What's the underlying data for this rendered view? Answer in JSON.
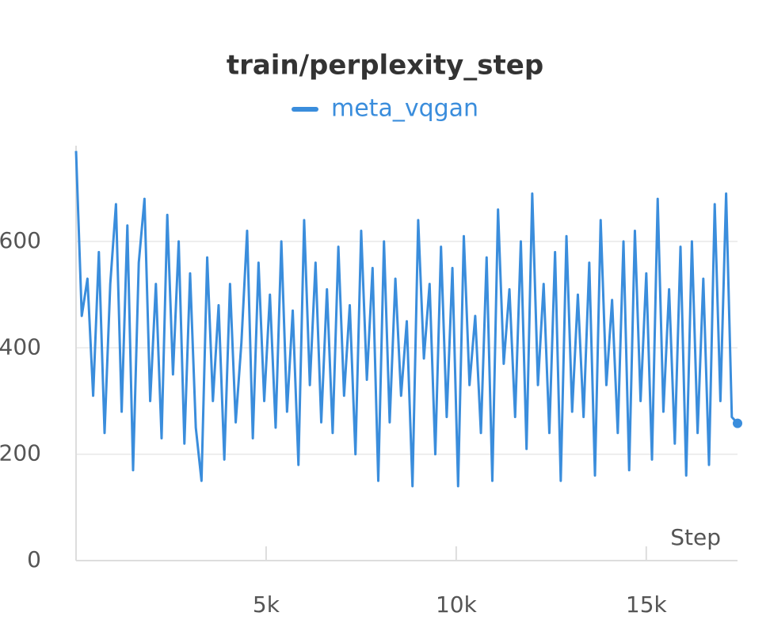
{
  "chart_data": {
    "type": "line",
    "title": "train/perplexity_step",
    "xlabel": "Step",
    "series": [
      {
        "name": "meta_vqgan",
        "color": "#3a8ddc",
        "values": [
          770,
          460,
          530,
          310,
          580,
          240,
          520,
          670,
          280,
          630,
          170,
          560,
          680,
          300,
          520,
          230,
          650,
          350,
          600,
          220,
          540,
          250,
          150,
          570,
          300,
          480,
          190,
          520,
          260,
          410,
          620,
          230,
          560,
          300,
          500,
          250,
          600,
          280,
          470,
          180,
          640,
          330,
          560,
          260,
          510,
          240,
          590,
          310,
          480,
          200,
          620,
          340,
          550,
          150,
          600,
          260,
          530,
          310,
          450,
          140,
          640,
          380,
          520,
          200,
          590,
          270,
          550,
          140,
          610,
          330,
          460,
          240,
          570,
          150,
          660,
          370,
          510,
          270,
          600,
          210,
          690,
          330,
          520,
          240,
          580,
          150,
          610,
          280,
          500,
          270,
          560,
          160,
          640,
          330,
          490,
          240,
          600,
          170,
          620,
          300,
          540,
          190,
          680,
          280,
          510,
          220,
          590,
          160,
          600,
          240,
          530,
          180,
          670,
          300,
          690,
          270,
          258
        ]
      }
    ],
    "x": [
      0,
      150,
      300,
      450,
      600,
      750,
      900,
      1050,
      1200,
      1350,
      1500,
      1650,
      1800,
      1950,
      2100,
      2250,
      2400,
      2550,
      2700,
      2850,
      3000,
      3150,
      3300,
      3450,
      3600,
      3750,
      3900,
      4050,
      4200,
      4350,
      4500,
      4650,
      4800,
      4950,
      5100,
      5250,
      5400,
      5550,
      5700,
      5850,
      6000,
      6150,
      6300,
      6450,
      6600,
      6750,
      6900,
      7050,
      7200,
      7350,
      7500,
      7650,
      7800,
      7950,
      8100,
      8250,
      8400,
      8550,
      8700,
      8850,
      9000,
      9150,
      9300,
      9450,
      9600,
      9750,
      9900,
      10050,
      10200,
      10350,
      10500,
      10650,
      10800,
      10950,
      11100,
      11250,
      11400,
      11550,
      11700,
      11850,
      12000,
      12150,
      12300,
      12450,
      12600,
      12750,
      12900,
      13050,
      13200,
      13350,
      13500,
      13650,
      13800,
      13950,
      14100,
      14250,
      14400,
      14550,
      14700,
      14850,
      15000,
      15150,
      15300,
      15450,
      15600,
      15750,
      15900,
      16050,
      16200,
      16350,
      16500,
      16650,
      16800,
      16950,
      17100,
      17250,
      17400
    ],
    "xlim": [
      0,
      17400
    ],
    "ylim": [
      0,
      780
    ],
    "xticks": [
      {
        "value": 5000,
        "label": "5k"
      },
      {
        "value": 10000,
        "label": "10k"
      },
      {
        "value": 15000,
        "label": "15k"
      }
    ],
    "yticks": [
      0,
      200,
      400,
      600
    ],
    "grid": true
  }
}
